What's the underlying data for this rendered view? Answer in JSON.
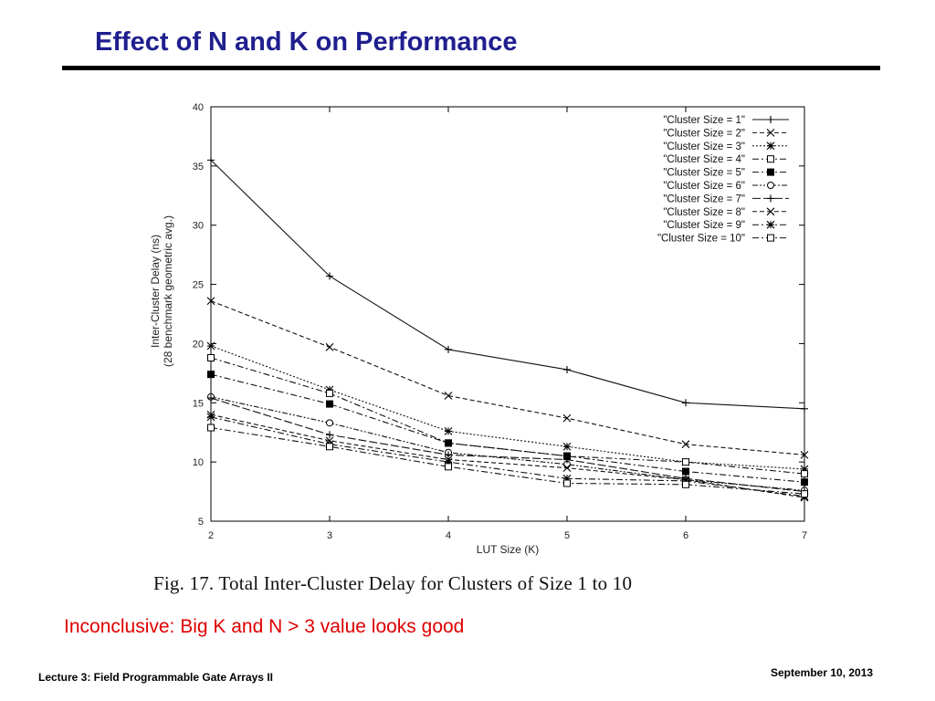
{
  "slide": {
    "title": "Effect of N and K on Performance",
    "caption": "Fig. 17.    Total Inter-Cluster Delay for Clusters of Size 1 to 10",
    "note": "Inconclusive: Big K and N > 3 value looks good",
    "footer_left": "Lecture 3: Field Programmable Gate Arrays II",
    "footer_right": "September 10, 2013"
  },
  "colors": {
    "title": "#1f1f8f",
    "note": "#e00000"
  },
  "chart_data": {
    "type": "line",
    "xlabel": "LUT Size (K)",
    "ylabel_lines": [
      "Inter-Cluster Delay (ns)",
      "(28 benchmark geometric avg.)"
    ],
    "x": [
      2,
      3,
      4,
      5,
      6,
      7
    ],
    "xlim": [
      2,
      7
    ],
    "ylim": [
      5,
      40
    ],
    "xticks": [
      2,
      3,
      4,
      5,
      6,
      7
    ],
    "yticks": [
      5,
      10,
      15,
      20,
      25,
      30,
      35,
      40
    ],
    "grid": false,
    "legend_position": "top-right",
    "series": [
      {
        "name": "\"Cluster Size = 1\"",
        "marker": "plus",
        "dash": "solid",
        "values": [
          35.5,
          25.7,
          19.5,
          17.8,
          15.0,
          14.5
        ]
      },
      {
        "name": "\"Cluster Size = 2\"",
        "marker": "cross",
        "dash": "dashed",
        "values": [
          23.6,
          19.7,
          15.6,
          13.7,
          11.5,
          10.6
        ]
      },
      {
        "name": "\"Cluster Size = 3\"",
        "marker": "star",
        "dash": "dotted",
        "values": [
          19.8,
          16.1,
          12.6,
          11.3,
          10.0,
          9.4
        ]
      },
      {
        "name": "\"Cluster Size = 4\"",
        "marker": "square",
        "dash": "dashdot",
        "values": [
          18.8,
          15.8,
          11.6,
          10.5,
          10.0,
          9.0
        ]
      },
      {
        "name": "\"Cluster Size = 5\"",
        "marker": "filled-square",
        "dash": "dashdot",
        "values": [
          17.4,
          14.9,
          11.6,
          10.5,
          9.2,
          8.3
        ]
      },
      {
        "name": "\"Cluster Size = 6\"",
        "marker": "circle",
        "dash": "dashdotdot",
        "values": [
          15.5,
          13.3,
          10.8,
          9.8,
          8.5,
          7.6
        ]
      },
      {
        "name": "\"Cluster Size = 7\"",
        "marker": "plus",
        "dash": "longdash",
        "values": [
          15.4,
          12.3,
          10.6,
          10.2,
          8.6,
          7.5
        ]
      },
      {
        "name": "\"Cluster Size = 8\"",
        "marker": "cross",
        "dash": "dashed",
        "values": [
          14.0,
          11.8,
          10.2,
          9.5,
          8.5,
          7.0
        ]
      },
      {
        "name": "\"Cluster Size = 9\"",
        "marker": "star",
        "dash": "dashdot",
        "values": [
          13.8,
          11.5,
          10.0,
          8.6,
          8.4,
          7.1
        ]
      },
      {
        "name": "\"Cluster Size = 10\"",
        "marker": "square",
        "dash": "dashdot",
        "values": [
          12.9,
          11.3,
          9.6,
          8.2,
          8.1,
          7.3
        ]
      }
    ]
  }
}
